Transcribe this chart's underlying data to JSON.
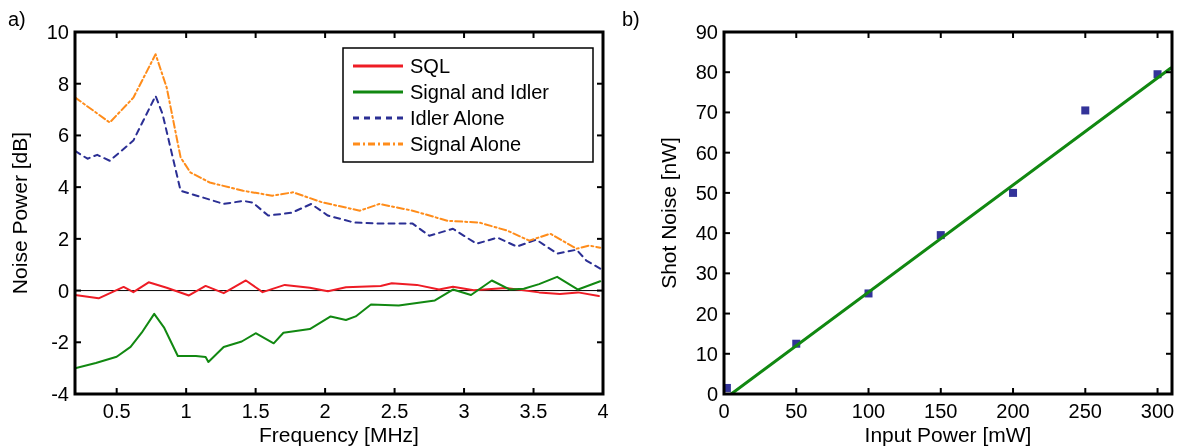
{
  "chart_data": [
    {
      "type": "line",
      "title": "a)",
      "xlabel": "Frequency [MHz]",
      "ylabel": "Noise Power [dB]",
      "xlim": [
        0.2,
        4
      ],
      "xticks": [
        0.5,
        1,
        1.5,
        2,
        2.5,
        3,
        3.5,
        4
      ],
      "ylim": [
        -4,
        10
      ],
      "yticks": [
        -4,
        -2,
        0,
        2,
        4,
        6,
        8,
        10
      ],
      "grid": false,
      "legend": "top right",
      "ref_lines": [
        {
          "axis": "y",
          "value": 0,
          "color": "#000000"
        }
      ],
      "series": [
        {
          "name": "SQL",
          "color": "#ee1c25",
          "line_style": "solid",
          "x": [
            0.2,
            0.37,
            0.55,
            0.62,
            0.73,
            0.86,
            1.02,
            1.14,
            1.27,
            1.43,
            1.55,
            1.71,
            1.89,
            2.02,
            2.15,
            2.4,
            2.48,
            2.66,
            2.82,
            2.92,
            3.07,
            3.3,
            3.54,
            3.69,
            3.82,
            3.97
          ],
          "values": [
            -0.17,
            -0.3,
            0.14,
            -0.06,
            0.32,
            0.11,
            -0.19,
            0.18,
            -0.1,
            0.39,
            -0.06,
            0.22,
            0.11,
            -0.03,
            0.13,
            0.18,
            0.28,
            0.22,
            0.04,
            0.15,
            0.01,
            0.1,
            -0.07,
            -0.13,
            -0.07,
            -0.21
          ]
        },
        {
          "name": "Signal and Idler",
          "color": "#118811",
          "line_style": "solid",
          "x": [
            0.2,
            0.35,
            0.5,
            0.6,
            0.68,
            0.77,
            0.84,
            0.94,
            1.07,
            1.14,
            1.16,
            1.27,
            1.4,
            1.5,
            1.63,
            1.7,
            1.89,
            2.04,
            2.15,
            2.22,
            2.33,
            2.53,
            2.79,
            2.92,
            3.05,
            3.2,
            3.33,
            3.43,
            3.54,
            3.67,
            3.82,
            3.98
          ],
          "values": [
            -3.01,
            -2.8,
            -2.56,
            -2.18,
            -1.63,
            -0.9,
            -1.42,
            -2.53,
            -2.53,
            -2.57,
            -2.76,
            -2.18,
            -1.97,
            -1.65,
            -2.04,
            -1.63,
            -1.49,
            -1.0,
            -1.14,
            -1.0,
            -0.54,
            -0.58,
            -0.38,
            0.04,
            -0.17,
            0.39,
            0.04,
            0.07,
            0.25,
            0.53,
            0.04,
            0.36
          ]
        },
        {
          "name": "Idler Alone",
          "color": "#2b2f94",
          "line_style": "dashed",
          "x": [
            0.2,
            0.29,
            0.36,
            0.45,
            0.62,
            0.78,
            0.83,
            0.96,
            1.12,
            1.27,
            1.41,
            1.48,
            1.59,
            1.76,
            1.9,
            2.02,
            2.21,
            2.39,
            2.63,
            2.75,
            2.92,
            3.09,
            3.24,
            3.38,
            3.52,
            3.67,
            3.81,
            3.88,
            3.98
          ],
          "values": [
            5.4,
            5.1,
            5.25,
            5.02,
            5.8,
            7.53,
            6.83,
            3.86,
            3.6,
            3.35,
            3.47,
            3.4,
            2.9,
            3.01,
            3.35,
            2.9,
            2.63,
            2.59,
            2.59,
            2.12,
            2.39,
            1.81,
            2.05,
            1.7,
            1.97,
            1.43,
            1.58,
            1.16,
            0.85
          ]
        },
        {
          "name": "Signal Alone",
          "color": "#ff8c1a",
          "line_style": "dashdot",
          "x": [
            0.2,
            0.45,
            0.62,
            0.78,
            0.86,
            0.96,
            1.03,
            1.17,
            1.41,
            1.62,
            1.77,
            1.98,
            2.25,
            2.39,
            2.63,
            2.88,
            3.11,
            3.31,
            3.47,
            3.62,
            3.81,
            3.9,
            3.98
          ],
          "values": [
            7.47,
            6.5,
            7.46,
            9.14,
            7.85,
            5.15,
            4.57,
            4.18,
            3.86,
            3.67,
            3.8,
            3.41,
            3.09,
            3.35,
            3.09,
            2.7,
            2.63,
            2.32,
            1.93,
            2.2,
            1.62,
            1.74,
            1.66
          ]
        }
      ]
    },
    {
      "type": "scatter",
      "title": "b)",
      "xlabel": "Input Power [mW]",
      "ylabel": "Shot Noise [nW]",
      "xlim": [
        0,
        310
      ],
      "xticks": [
        0,
        50,
        100,
        150,
        200,
        250,
        300
      ],
      "ylim": [
        0,
        90
      ],
      "yticks": [
        0,
        10,
        20,
        30,
        40,
        50,
        60,
        70,
        80,
        90
      ],
      "grid": false,
      "legend": false,
      "series": [
        {
          "color": "#333399",
          "marker": "square",
          "x": [
            2,
            50,
            100,
            150,
            200,
            250,
            300
          ],
          "values": [
            1.5,
            12.5,
            25,
            39.5,
            50,
            70.5,
            79.5
          ]
        },
        {
          "type": "line",
          "color": "#118811",
          "line_style": "solid",
          "x": [
            5,
            309
          ],
          "values": [
            0,
            81
          ]
        }
      ]
    }
  ]
}
